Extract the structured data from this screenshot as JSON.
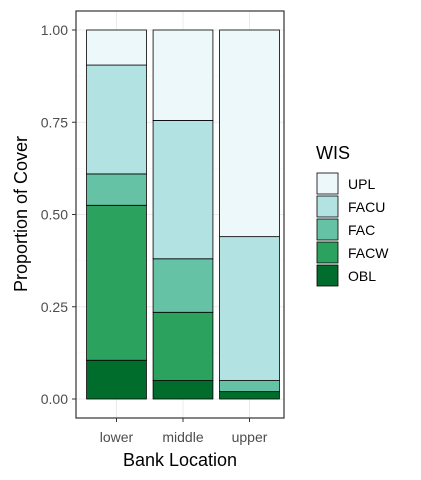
{
  "chart_data": {
    "type": "bar",
    "stacked": true,
    "title": "",
    "xlabel": "Bank Location",
    "ylabel": "Proportion of Cover",
    "categories": [
      "lower",
      "middle",
      "upper"
    ],
    "ylim": [
      0,
      1
    ],
    "yticks": [
      0,
      0.25,
      0.5,
      0.75,
      1
    ],
    "ytick_labels": [
      "0.00",
      "0.25",
      "0.50",
      "0.75",
      "1.00"
    ],
    "grid": true,
    "legend": {
      "title": "WIS",
      "placement": "right"
    },
    "series": [
      {
        "name": "OBL",
        "color": "#006d2c",
        "values": [
          0.105,
          0.05,
          0.02
        ]
      },
      {
        "name": "FACW",
        "color": "#2ca25f",
        "values": [
          0.42,
          0.185,
          0.0
        ]
      },
      {
        "name": "FAC",
        "color": "#66c2a4",
        "values": [
          0.085,
          0.145,
          0.03
        ]
      },
      {
        "name": "FACU",
        "color": "#b2e2e2",
        "values": [
          0.295,
          0.375,
          0.39
        ]
      },
      {
        "name": "UPL",
        "color": "#edf8fb",
        "values": [
          0.095,
          0.245,
          0.56
        ]
      }
    ]
  }
}
